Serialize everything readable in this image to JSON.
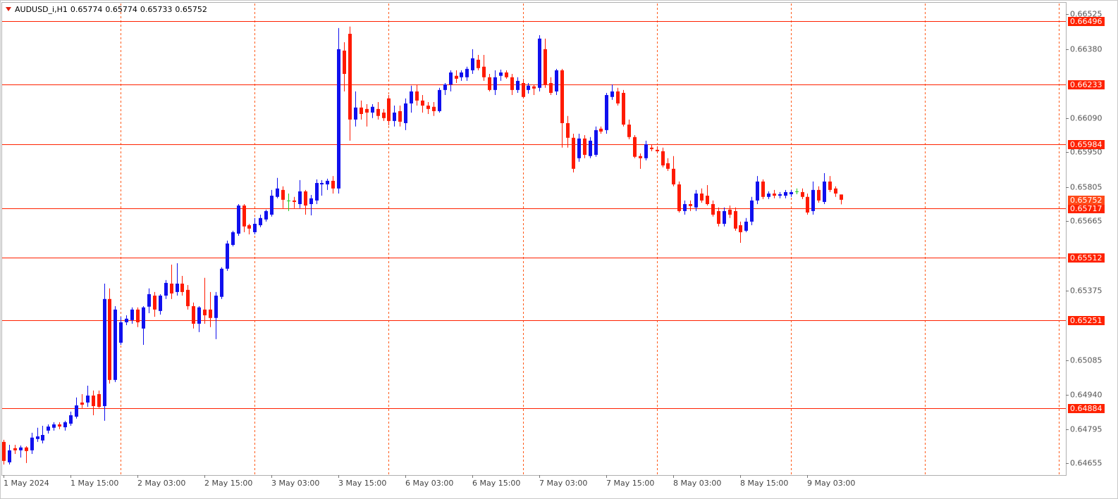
{
  "chart_data": {
    "type": "candlestick",
    "title": "AUDUSD_i,H1",
    "categories": [
      "1 May 2024",
      null,
      null,
      null,
      null,
      null,
      null,
      null,
      null,
      null,
      null,
      null,
      "1 May 15:00",
      null,
      null,
      null,
      null,
      null,
      null,
      null,
      null,
      null,
      null,
      null,
      "2 May 03:00",
      null,
      null,
      null,
      null,
      null,
      null,
      null,
      null,
      null,
      null,
      null,
      "2 May 15:00",
      null,
      null,
      null,
      null,
      null,
      null,
      null,
      null,
      null,
      null,
      null,
      "3 May 03:00",
      null,
      null,
      null,
      null,
      null,
      null,
      null,
      null,
      null,
      null,
      null,
      "3 May 15:00",
      null,
      null,
      null,
      null,
      null,
      null,
      null,
      null,
      null,
      null,
      null,
      "6 May 03:00",
      null,
      null,
      null,
      null,
      null,
      null,
      null,
      null,
      null,
      null,
      null,
      "6 May 15:00",
      null,
      null,
      null,
      null,
      null,
      null,
      null,
      null,
      null,
      null,
      null,
      "7 May 03:00",
      null,
      null,
      null,
      null,
      null,
      null,
      null,
      null,
      null,
      null,
      null,
      "7 May 15:00",
      null,
      null,
      null,
      null,
      null,
      null,
      null,
      null,
      null,
      null,
      null,
      "8 May 03:00",
      null,
      null,
      null,
      null,
      null,
      null,
      null,
      null,
      null,
      null,
      null,
      "8 May 15:00",
      null,
      null,
      null,
      null,
      null,
      null,
      null,
      null,
      null,
      null,
      null,
      "9 May 03:00",
      null,
      null,
      null,
      null,
      null,
      null
    ],
    "open": [
      0.64744,
      0.64659,
      0.64718,
      0.64709,
      0.64721,
      0.64709,
      0.64756,
      0.6475,
      0.64791,
      0.64803,
      0.64817,
      0.64805,
      0.6482,
      0.64849,
      0.64908,
      0.64908,
      0.64937,
      0.64943,
      0.64893,
      0.65339,
      0.65002,
      0.65157,
      0.65242,
      0.65251,
      0.65295,
      0.65216,
      0.65307,
      0.65353,
      0.65289,
      0.65353,
      0.65403,
      0.65368,
      0.65403,
      0.65377,
      0.65309,
      0.65236,
      0.65295,
      0.65295,
      0.6526,
      0.65348,
      0.65465,
      0.65564,
      0.65611,
      0.65728,
      0.65646,
      0.65617,
      0.65646,
      0.6567,
      0.6569,
      0.65764,
      0.65793,
      0.65749,
      0.65749,
      0.65734,
      0.65787,
      0.65734,
      0.65749,
      0.65816,
      0.65816,
      0.65831,
      0.65799,
      0.66373,
      0.66443,
      0.66086,
      0.66136,
      0.6613,
      0.66115,
      0.6613,
      0.66115,
      0.66174,
      0.6608,
      0.66121,
      0.66071,
      0.66153,
      0.66203,
      0.66165,
      0.66144,
      0.66139,
      0.66121,
      0.66209,
      0.66232,
      0.66268,
      0.66262,
      0.66262,
      0.66291,
      0.66335,
      0.66306,
      0.66262,
      0.66209,
      0.66268,
      0.66282,
      0.66262,
      0.66209,
      0.66238,
      0.66209,
      0.66224,
      0.66218,
      0.66379,
      0.66238,
      0.66203,
      0.66291,
      0.66071,
      0.6601,
      0.65925,
      0.66007,
      0.65934,
      0.65939,
      0.66048,
      0.66042,
      0.6618,
      0.66203,
      0.66197,
      0.66065,
      0.66013,
      0.65934,
      0.65925,
      0.65969,
      0.6596,
      0.65954,
      0.65904,
      0.65881,
      0.65816,
      0.65705,
      0.65734,
      0.6572,
      0.65778,
      0.65769,
      0.65734,
      0.65705,
      0.65652,
      0.65711,
      0.65705,
      0.65646,
      0.65623,
      0.65661,
      0.65749,
      0.65828,
      0.65764,
      0.65778,
      0.65769,
      0.65769,
      0.65775,
      0.65787,
      0.65784,
      0.65764,
      0.65705,
      0.65793,
      0.65743,
      0.65828,
      0.65799,
      0.65774
    ],
    "high": [
      0.64753,
      0.64732,
      0.64732,
      0.64729,
      0.64726,
      0.64782,
      0.64803,
      0.64811,
      0.64817,
      0.64826,
      0.64826,
      0.64832,
      0.6487,
      0.64929,
      0.64943,
      0.64978,
      0.64958,
      0.64958,
      0.65403,
      0.65383,
      0.65309,
      0.65265,
      0.65271,
      0.65304,
      0.65304,
      0.65309,
      0.65383,
      0.65368,
      0.65359,
      0.65418,
      0.65482,
      0.65488,
      0.65435,
      0.65397,
      0.65324,
      0.65309,
      0.65427,
      0.65368,
      0.65368,
      0.65471,
      0.65582,
      0.65623,
      0.65734,
      0.65734,
      0.65652,
      0.65676,
      0.6569,
      0.65711,
      0.65793,
      0.65843,
      0.65808,
      0.65778,
      0.65764,
      0.65834,
      0.65793,
      0.65772,
      0.65837,
      0.65834,
      0.6584,
      0.65851,
      0.66467,
      0.66408,
      0.66473,
      0.66203,
      0.66165,
      0.6615,
      0.6615,
      0.66159,
      0.6613,
      0.66188,
      0.66144,
      0.66144,
      0.66174,
      0.66227,
      0.66232,
      0.66188,
      0.66159,
      0.66159,
      0.66218,
      0.66238,
      0.66291,
      0.66291,
      0.66291,
      0.66306,
      0.66379,
      0.66355,
      0.66355,
      0.66276,
      0.66291,
      0.66294,
      0.66291,
      0.66276,
      0.66262,
      0.66256,
      0.66238,
      0.66232,
      0.66437,
      0.66423,
      0.66262,
      0.66297,
      0.66297,
      0.66101,
      0.66027,
      0.66027,
      0.66021,
      0.66013,
      0.66057,
      0.66057,
      0.66197,
      0.66232,
      0.66218,
      0.66209,
      0.66086,
      0.66021,
      0.65945,
      0.65998,
      0.65983,
      0.65975,
      0.65969,
      0.65925,
      0.65934,
      0.65828,
      0.65749,
      0.65749,
      0.65793,
      0.65799,
      0.65813,
      0.65749,
      0.6572,
      0.6572,
      0.65728,
      0.6572,
      0.65661,
      0.65676,
      0.65764,
      0.65851,
      0.65837,
      0.65787,
      0.65793,
      0.65784,
      0.65793,
      0.65793,
      0.65799,
      0.65799,
      0.65778,
      0.65828,
      0.65808,
      0.65863,
      0.65851,
      0.65808,
      0.65774
    ],
    "low": [
      0.6465,
      0.6465,
      0.64694,
      0.64679,
      0.64656,
      0.64694,
      0.64744,
      0.64738,
      0.64779,
      0.64791,
      0.64797,
      0.64791,
      0.64811,
      0.64841,
      0.64885,
      0.6489,
      0.64855,
      0.64885,
      0.64832,
      0.64987,
      0.64993,
      0.65148,
      0.6523,
      0.65236,
      0.65222,
      0.65148,
      0.6528,
      0.65265,
      0.65274,
      0.65339,
      0.65339,
      0.65353,
      0.65353,
      0.65295,
      0.65216,
      0.65201,
      0.65236,
      0.65222,
      0.65172,
      0.65339,
      0.65456,
      0.65558,
      0.65602,
      0.65617,
      0.65608,
      0.65608,
      0.65638,
      0.65661,
      0.65682,
      0.65758,
      0.65717,
      0.65705,
      0.65717,
      0.65717,
      0.6569,
      0.65687,
      0.65734,
      0.65769,
      0.65793,
      0.65778,
      0.65778,
      0.66203,
      0.65998,
      0.66057,
      0.66086,
      0.66057,
      0.66092,
      0.66086,
      0.6608,
      0.66062,
      0.66057,
      0.66057,
      0.66042,
      0.66115,
      0.66144,
      0.66115,
      0.66109,
      0.66101,
      0.66115,
      0.66188,
      0.66203,
      0.66238,
      0.66247,
      0.66247,
      0.66276,
      0.66291,
      0.66247,
      0.66203,
      0.66188,
      0.66247,
      0.66256,
      0.66188,
      0.66197,
      0.66174,
      0.66194,
      0.66188,
      0.66203,
      0.66218,
      0.66188,
      0.66188,
      0.65969,
      0.65969,
      0.65866,
      0.6591,
      0.65925,
      0.65925,
      0.65931,
      0.66027,
      0.66027,
      0.66168,
      0.66144,
      0.66057,
      0.66004,
      0.65925,
      0.65881,
      0.65916,
      0.65954,
      0.65945,
      0.65887,
      0.65872,
      0.65808,
      0.65699,
      0.6569,
      0.65705,
      0.65705,
      0.6574,
      0.65728,
      0.65682,
      0.65641,
      0.65641,
      0.65676,
      0.65623,
      0.65573,
      0.65617,
      0.65646,
      0.65734,
      0.65755,
      0.65755,
      0.65758,
      0.65758,
      0.65758,
      0.65764,
      0.65775,
      0.65755,
      0.6569,
      0.6569,
      0.6574,
      0.65734,
      0.65784,
      0.65764,
      0.65733
    ],
    "close": [
      0.64665,
      0.64709,
      0.64709,
      0.64721,
      0.64706,
      0.64762,
      0.64767,
      0.64773,
      0.64808,
      0.64817,
      0.64808,
      0.64826,
      0.64855,
      0.64896,
      0.64899,
      0.64937,
      0.64893,
      0.6489,
      0.65339,
      0.65002,
      0.65295,
      0.65242,
      0.65257,
      0.65295,
      0.65242,
      0.65304,
      0.65359,
      0.65295,
      0.65353,
      0.65406,
      0.65362,
      0.65403,
      0.65368,
      0.65309,
      0.65236,
      0.65304,
      0.65271,
      0.6526,
      0.65353,
      0.65465,
      0.6557,
      0.65617,
      0.65728,
      0.65641,
      0.65632,
      0.65652,
      0.65676,
      0.65705,
      0.65769,
      0.65799,
      0.65752,
      0.65749,
      0.65743,
      0.65787,
      0.65728,
      0.65758,
      0.65822,
      0.65822,
      0.65831,
      0.65799,
      0.66379,
      0.66276,
      0.66086,
      0.66136,
      0.66109,
      0.66115,
      0.66139,
      0.66101,
      0.66092,
      0.6608,
      0.66115,
      0.66077,
      0.66153,
      0.66203,
      0.66165,
      0.66144,
      0.6613,
      0.66121,
      0.66209,
      0.66232,
      0.66282,
      0.66256,
      0.66282,
      0.66297,
      0.66341,
      0.663,
      0.66262,
      0.66209,
      0.66262,
      0.66282,
      0.66262,
      0.66209,
      0.66247,
      0.6618,
      0.66227,
      0.66215,
      0.66423,
      0.66232,
      0.66197,
      0.66291,
      0.66071,
      0.6601,
      0.65881,
      0.66007,
      0.65939,
      0.65998,
      0.66042,
      0.66036,
      0.66188,
      0.66203,
      0.66153,
      0.66065,
      0.66013,
      0.65931,
      0.65925,
      0.65983,
      0.65963,
      0.65954,
      0.65895,
      0.65881,
      0.65816,
      0.65705,
      0.65734,
      0.65726,
      0.65778,
      0.65749,
      0.65734,
      0.6569,
      0.65652,
      0.65705,
      0.6569,
      0.65632,
      0.65617,
      0.65661,
      0.65749,
      0.65828,
      0.65764,
      0.65778,
      0.65769,
      0.65775,
      0.65784,
      0.65784,
      0.65787,
      0.65764,
      0.65699,
      0.65793,
      0.65749,
      0.65828,
      0.65793,
      0.65778,
      0.65752
    ],
    "up_color": "#1010ee",
    "down_color": "#ff1a00",
    "doji_color": "#22cc22",
    "levels": [
      0.66496,
      0.66233,
      0.65984,
      0.65717,
      0.65512,
      0.65251,
      0.64884
    ],
    "level_color": "#ff2200",
    "separator_color": "#ff5a1a",
    "current_price_color": "#ff4a1a",
    "ylim": [
      0.64606,
      0.66569
    ],
    "yticks": [
      0.66525,
      {
        "value": 0.6638,
        "label": "0.66380"
      },
      {
        "value": 0.6609,
        "label": "0.66090"
      },
      {
        "value": 0.6595,
        "label": "0.65950"
      },
      0.65805,
      0.65665,
      0.65375,
      0.65085,
      {
        "value": 0.6494,
        "label": "0.64940"
      },
      0.64795,
      0.64655
    ],
    "period_separators": true
  }
}
